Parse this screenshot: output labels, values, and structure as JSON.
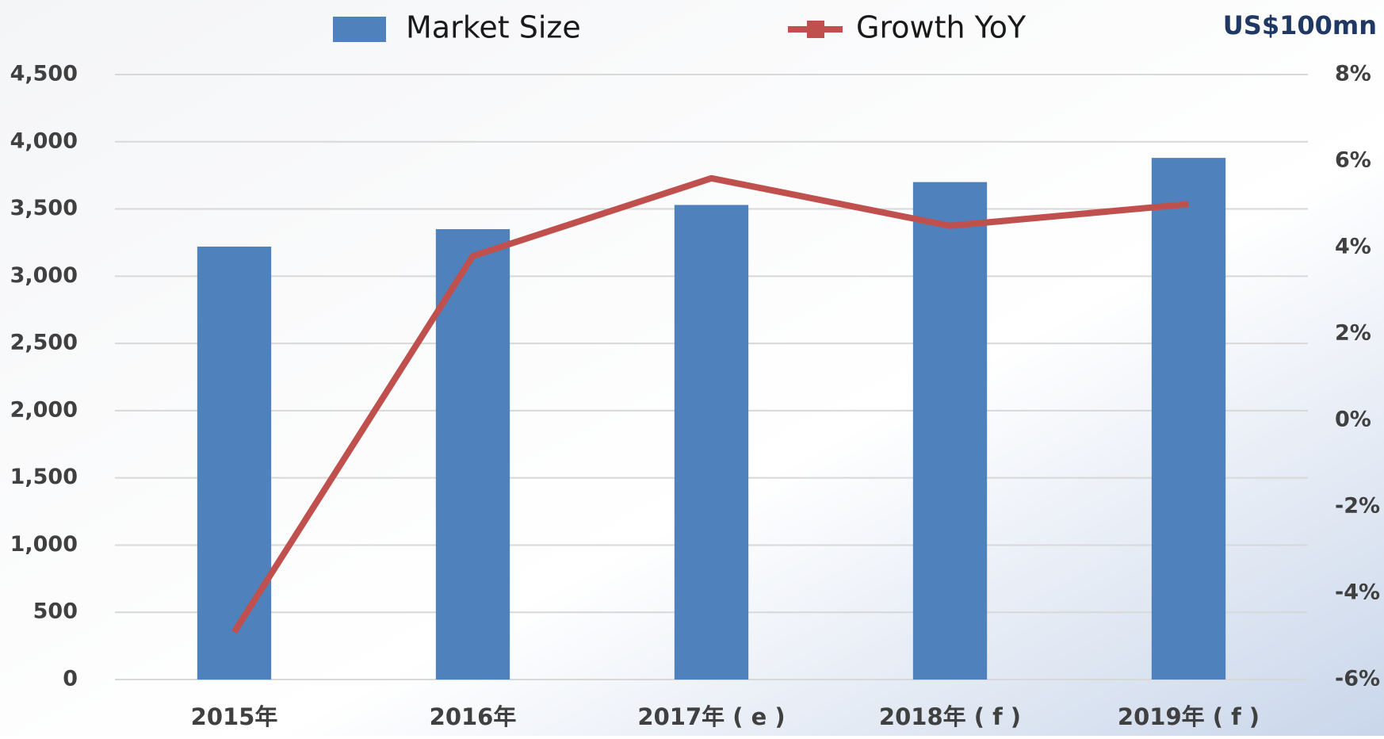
{
  "chart_data": {
    "type": "bar-line",
    "unit_label": "US$100mn",
    "categories": [
      "2015年",
      "2016年",
      "2017年 ( e )",
      "2018年 ( f )",
      "2019年 ( f )"
    ],
    "series": [
      {
        "name": "Market Size",
        "type": "bar",
        "color": "#4f81bd",
        "axis": "y",
        "values": [
          3220,
          3350,
          3530,
          3700,
          3880
        ]
      },
      {
        "name": "Growth YoY",
        "type": "line",
        "color": "#c0504d",
        "axis": "y2",
        "values": [
          -4.9,
          3.8,
          5.6,
          4.5,
          5.0
        ]
      }
    ],
    "ylim": [
      0,
      4500
    ],
    "yticks": [
      0,
      500,
      {
        "value": 1000,
        "label": "1,000"
      },
      {
        "value": 1500,
        "label": "1,500"
      },
      {
        "value": 2000,
        "label": "2,000"
      },
      {
        "value": 2500,
        "label": "2,500"
      },
      {
        "value": 3000,
        "label": "3,000"
      },
      {
        "value": 3500,
        "label": "3,500"
      },
      {
        "value": 4000,
        "label": "4,000"
      },
      {
        "value": 4500,
        "label": "4,500"
      }
    ],
    "y2lim": [
      -6,
      8
    ],
    "y2ticks": [
      {
        "value": -6,
        "label": "-6%"
      },
      {
        "value": -4,
        "label": "-4%"
      },
      {
        "value": -2,
        "label": "-2%"
      },
      {
        "value": 0,
        "label": "0%"
      },
      {
        "value": 2,
        "label": "2%"
      },
      {
        "value": 4,
        "label": "4%"
      },
      {
        "value": 6,
        "label": "6%"
      },
      {
        "value": 8,
        "label": "8%"
      }
    ],
    "grid": true
  }
}
